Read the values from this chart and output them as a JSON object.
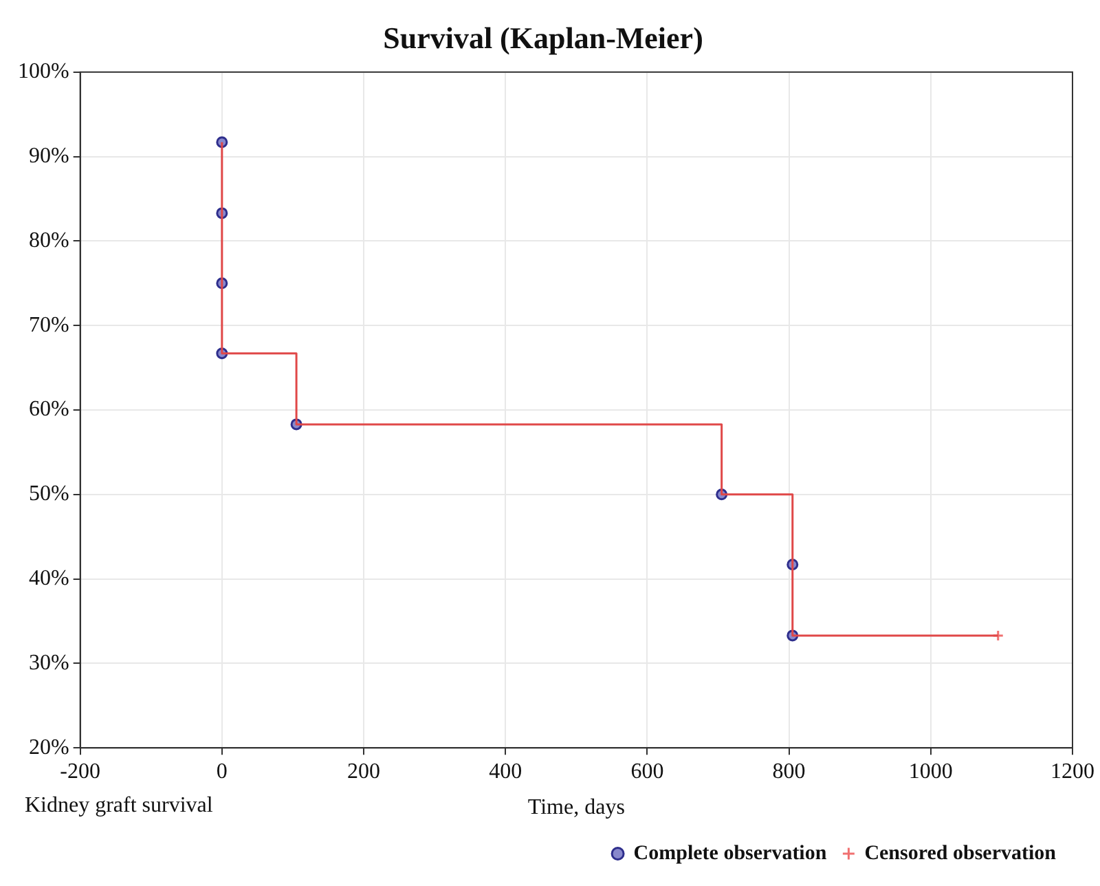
{
  "chart_data": {
    "type": "line",
    "title": "Survival (Kaplan-Meier)",
    "xlabel": "Time, days",
    "annotations": [
      "Kidney graft survival"
    ],
    "xlim": [
      -200,
      1200
    ],
    "xticks": [
      -200,
      0,
      200,
      400,
      600,
      800,
      1000,
      1200
    ],
    "ylim": [
      20,
      100
    ],
    "yticks": [
      {
        "value": 20,
        "label": "20%"
      },
      {
        "value": 30,
        "label": "30%"
      },
      {
        "value": 40,
        "label": "40%"
      },
      {
        "value": 50,
        "label": "50%"
      },
      {
        "value": 60,
        "label": "60%"
      },
      {
        "value": 70,
        "label": "70%"
      },
      {
        "value": 80,
        "label": "80%"
      },
      {
        "value": 90,
        "label": "90%"
      },
      {
        "value": 100,
        "label": "100%"
      }
    ],
    "grid": true,
    "legend": "bottom right",
    "series": [
      {
        "type": "step",
        "color": "#e04848",
        "marker": "none",
        "line_style": "solid",
        "x": [
          0,
          0,
          105,
          705,
          805,
          1095
        ],
        "values": [
          91.7,
          66.7,
          58.3,
          50,
          33.3,
          33.3
        ]
      },
      {
        "type": "scatter",
        "name": "Complete observation",
        "color": "#2e2e8c",
        "marker": "circle",
        "x": [
          0,
          0,
          0,
          0,
          105,
          705,
          805,
          805
        ],
        "values": [
          91.7,
          83.3,
          75,
          66.7,
          58.3,
          50,
          41.7,
          33.3
        ]
      },
      {
        "type": "scatter",
        "name": "Censored observation",
        "color": "#f07070",
        "marker": "cross",
        "x": [
          1095
        ],
        "values": [
          33.3
        ]
      }
    ]
  }
}
